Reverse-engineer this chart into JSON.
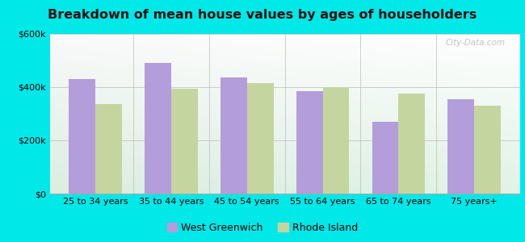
{
  "title": "Breakdown of mean house values by ages of householders",
  "categories": [
    "25 to 34 years",
    "35 to 44 years",
    "45 to 54 years",
    "55 to 64 years",
    "65 to 74 years",
    "75 years+"
  ],
  "west_greenwich": [
    430000,
    490000,
    435000,
    385000,
    270000,
    355000
  ],
  "rhode_island": [
    335000,
    395000,
    415000,
    400000,
    375000,
    330000
  ],
  "west_greenwich_color": "#b39ddb",
  "rhode_island_color": "#c5d5a0",
  "background_color": "#00e8e8",
  "ylim": [
    0,
    600000
  ],
  "yticks": [
    0,
    200000,
    400000,
    600000
  ],
  "ytick_labels": [
    "$0",
    "$200k",
    "$400k",
    "$600k"
  ],
  "legend_west_greenwich": "West Greenwich",
  "legend_rhode_island": "Rhode Island",
  "bar_width": 0.35,
  "title_fontsize": 11.5,
  "tick_fontsize": 8,
  "legend_fontsize": 9
}
